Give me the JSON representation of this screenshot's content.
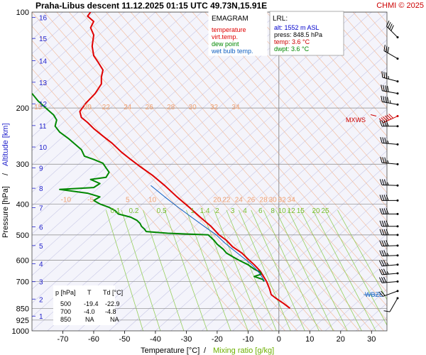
{
  "header": {
    "title": "Praha-Libus   descent   11.12.2025 01:15 UTC  49.73N,15.91E",
    "copyright": "CHMI © 2025"
  },
  "legend": {
    "title": "EMAGRAM",
    "items": [
      {
        "label": "temperature",
        "color": "#e00000"
      },
      {
        "label": "virt.temp.",
        "color": "#e00000"
      },
      {
        "label": "dew point",
        "color": "#008800"
      },
      {
        "label": "wet bulb temp.",
        "color": "#1060c0"
      }
    ]
  },
  "lrl": {
    "title": "LRL:",
    "alt": "alt: 1552 m ASL",
    "press": "press: 848.5 hPa",
    "temp": "temp: 3.6 °C",
    "dwpt": "dwpt: 3.6 °C",
    "colors": {
      "alt": "#0000cc",
      "press": "#000000",
      "temp": "#cc0000",
      "dwpt": "#008800"
    }
  },
  "table": {
    "headers": [
      "p [hPa]",
      "T",
      "Td [°C]"
    ],
    "rows": [
      [
        "500",
        "-19.4",
        "-22.9"
      ],
      [
        "700",
        "-4.0",
        "-4.8"
      ],
      [
        "850",
        "NA",
        "NA"
      ]
    ]
  },
  "axis_titles": {
    "x_left": "Temperature [°C]",
    "x_sep": "/",
    "x_right": "Mixing ratio [g/kg]",
    "y_left": "Pressure [hPa]",
    "y_sep": "/",
    "y_right": "Altitude [km]"
  },
  "markers": {
    "mxws": "MXWS",
    "wbzl": "WBZL"
  },
  "chart_data": {
    "type": "line",
    "xlim": [
      -80,
      35
    ],
    "ylim_hpa": [
      1000,
      100
    ],
    "y_scale": "log",
    "x_ticks": [
      -70,
      -60,
      -50,
      -40,
      -30,
      -20,
      -10,
      0,
      10,
      20,
      30
    ],
    "pressure_ticks": [
      100,
      200,
      300,
      400,
      500,
      600,
      700,
      850,
      925,
      1000
    ],
    "altitude_ticks": [
      {
        "km": "1",
        "p": 899
      },
      {
        "km": "2",
        "p": 795
      },
      {
        "km": "3",
        "p": 701
      },
      {
        "km": "4",
        "p": 616
      },
      {
        "km": "5",
        "p": 540
      },
      {
        "km": "6",
        "p": 472
      },
      {
        "km": "7",
        "p": 411
      },
      {
        "km": "8",
        "p": 357
      },
      {
        "km": "9",
        "p": 308
      },
      {
        "km": "10",
        "p": 265
      },
      {
        "km": "11",
        "p": 227
      },
      {
        "km": "12",
        "p": 194
      },
      {
        "km": "13",
        "p": 166
      },
      {
        "km": "14",
        "p": 142
      },
      {
        "km": "15",
        "p": 121
      },
      {
        "km": "16",
        "p": 104
      }
    ],
    "dry_adiabat_labels_upper": [
      {
        "text": "15",
        "t": -78,
        "p": 198
      },
      {
        "text": "20",
        "t": -62,
        "p": 198
      },
      {
        "text": "22",
        "t": -56,
        "p": 198
      },
      {
        "text": "24",
        "t": -49,
        "p": 198
      },
      {
        "text": "26",
        "t": -42,
        "p": 198
      },
      {
        "text": "28",
        "t": -35,
        "p": 198
      },
      {
        "text": "30",
        "t": -28,
        "p": 198
      },
      {
        "text": "32",
        "t": -21,
        "p": 198
      },
      {
        "text": "34",
        "t": -14,
        "p": 198
      }
    ],
    "dry_adiabat_labels_lower": [
      {
        "text": "-10",
        "t": -69,
        "p": 386
      },
      {
        "text": "-5",
        "t": -61,
        "p": 386
      },
      {
        "text": "5",
        "t": -49,
        "p": 386
      },
      {
        "text": "10",
        "t": -41,
        "p": 386
      },
      {
        "text": "20",
        "t": -20,
        "p": 386
      },
      {
        "text": "22",
        "t": -17,
        "p": 386
      },
      {
        "text": "24",
        "t": -13,
        "p": 386
      },
      {
        "text": "26",
        "t": -9,
        "p": 386
      },
      {
        "text": "28",
        "t": -5,
        "p": 386
      },
      {
        "text": "30",
        "t": -2,
        "p": 386
      },
      {
        "text": "32",
        "t": 1,
        "p": 386
      },
      {
        "text": "34",
        "t": 4,
        "p": 386
      }
    ],
    "mixing_ratio_labels": [
      {
        "text": "0.1",
        "t": -53,
        "p": 418
      },
      {
        "text": "0.2",
        "t": -47,
        "p": 418
      },
      {
        "text": "0.5",
        "t": -38,
        "p": 418
      },
      {
        "text": "1",
        "t": -28,
        "p": 418
      },
      {
        "text": "1.4",
        "t": -24,
        "p": 418
      },
      {
        "text": "2",
        "t": -20,
        "p": 418
      },
      {
        "text": "3",
        "t": -15,
        "p": 418
      },
      {
        "text": "4",
        "t": -11,
        "p": 418
      },
      {
        "text": "6",
        "t": -6,
        "p": 418
      },
      {
        "text": "8",
        "t": -2,
        "p": 418
      },
      {
        "text": "10",
        "t": 1,
        "p": 418
      },
      {
        "text": "12",
        "t": 4,
        "p": 418
      },
      {
        "text": "15",
        "t": 7,
        "p": 418
      },
      {
        "text": "20",
        "t": 12,
        "p": 418
      },
      {
        "text": "25",
        "t": 15,
        "p": 418
      }
    ],
    "series": [
      {
        "name": "temperature",
        "color": "#e00000",
        "points": [
          [
            3.6,
            850
          ],
          [
            1.5,
            820
          ],
          [
            -1,
            790
          ],
          [
            -2.5,
            770
          ],
          [
            -3,
            740
          ],
          [
            -4,
            700
          ],
          [
            -4.8,
            680
          ],
          [
            -5.4,
            665
          ],
          [
            -6,
            650
          ],
          [
            -8,
            620
          ],
          [
            -10,
            595
          ],
          [
            -12,
            570
          ],
          [
            -15,
            545
          ],
          [
            -17,
            520
          ],
          [
            -19.4,
            500
          ],
          [
            -22,
            470
          ],
          [
            -25.5,
            440
          ],
          [
            -29,
            410
          ],
          [
            -33,
            380
          ],
          [
            -37,
            350
          ],
          [
            -41,
            325
          ],
          [
            -45,
            305
          ],
          [
            -48,
            290
          ],
          [
            -51,
            275
          ],
          [
            -54,
            258
          ],
          [
            -57,
            245
          ],
          [
            -60,
            232
          ],
          [
            -62,
            222
          ],
          [
            -64,
            214
          ],
          [
            -64.5,
            205
          ],
          [
            -62.5,
            193
          ],
          [
            -59.5,
            180
          ],
          [
            -57.5,
            168
          ],
          [
            -57.5,
            160
          ],
          [
            -57,
            152
          ],
          [
            -58.5,
            144
          ],
          [
            -60,
            137
          ],
          [
            -60.5,
            128
          ],
          [
            -60,
            118
          ],
          [
            -61,
            112
          ],
          [
            -60,
            107
          ],
          [
            -62,
            103
          ],
          [
            -61,
            100
          ]
        ]
      },
      {
        "name": "dew point",
        "color": "#008800",
        "points": [
          [
            -4.8,
            700
          ],
          [
            -5.2,
            690
          ],
          [
            -8,
            675
          ],
          [
            -7,
            670
          ],
          [
            -5.8,
            665
          ],
          [
            -6,
            655
          ],
          [
            -8,
            640
          ],
          [
            -10,
            620
          ],
          [
            -13,
            600
          ],
          [
            -15,
            585
          ],
          [
            -17,
            570
          ],
          [
            -18,
            555
          ],
          [
            -20,
            535
          ],
          [
            -21,
            520
          ],
          [
            -22.9,
            500
          ],
          [
            -36,
            494
          ],
          [
            -43,
            488
          ],
          [
            -43.5,
            480
          ],
          [
            -44.5,
            470
          ],
          [
            -45,
            460
          ],
          [
            -46,
            450
          ],
          [
            -48,
            440
          ],
          [
            -52,
            430
          ],
          [
            -53,
            420
          ],
          [
            -55,
            410
          ],
          [
            -58,
            400
          ],
          [
            -60,
            390
          ],
          [
            -58,
            380
          ],
          [
            -62,
            370
          ],
          [
            -71,
            360
          ],
          [
            -60,
            355
          ],
          [
            -58,
            345
          ],
          [
            -61,
            335
          ],
          [
            -56,
            330
          ],
          [
            -55,
            318
          ],
          [
            -56,
            308
          ],
          [
            -57,
            298
          ],
          [
            -60,
            290
          ],
          [
            -63,
            283
          ],
          [
            -64,
            270
          ],
          [
            -66,
            260
          ],
          [
            -68,
            250
          ],
          [
            -71,
            238
          ],
          [
            -72.5,
            228
          ],
          [
            -72,
            218
          ],
          [
            -73,
            210
          ],
          [
            -75,
            202
          ],
          [
            -78,
            190
          ],
          [
            -80,
            180
          ]
        ]
      },
      {
        "name": "wet bulb temp.",
        "color": "#1060c0",
        "points": [
          [
            -4.6,
            700
          ],
          [
            -5.6,
            675
          ],
          [
            -6.8,
            650
          ],
          [
            -8.8,
            620
          ],
          [
            -11.5,
            590
          ],
          [
            -14.5,
            560
          ],
          [
            -17.5,
            530
          ],
          [
            -20.3,
            500
          ],
          [
            -24.2,
            470
          ],
          [
            -28.3,
            440
          ],
          [
            -32.6,
            410
          ],
          [
            -37,
            380
          ],
          [
            -41.5,
            350
          ]
        ]
      }
    ],
    "wind_barbs": [
      {
        "p": 120,
        "dir": 315,
        "kt": 40
      },
      {
        "p": 140,
        "dir": 300,
        "kt": 30
      },
      {
        "p": 165,
        "dir": 285,
        "kt": 35
      },
      {
        "p": 180,
        "dir": 280,
        "kt": 40
      },
      {
        "p": 195,
        "dir": 280,
        "kt": 45
      },
      {
        "p": 212,
        "dir": 245,
        "kt": 60
      },
      {
        "p": 228,
        "dir": 270,
        "kt": 40
      },
      {
        "p": 260,
        "dir": 275,
        "kt": 35
      },
      {
        "p": 300,
        "dir": 275,
        "kt": 35
      },
      {
        "p": 350,
        "dir": 272,
        "kt": 35
      },
      {
        "p": 390,
        "dir": 270,
        "kt": 40
      },
      {
        "p": 430,
        "dir": 270,
        "kt": 40
      },
      {
        "p": 470,
        "dir": 270,
        "kt": 40
      },
      {
        "p": 500,
        "dir": 270,
        "kt": 40
      },
      {
        "p": 540,
        "dir": 268,
        "kt": 40
      },
      {
        "p": 580,
        "dir": 268,
        "kt": 35
      },
      {
        "p": 620,
        "dir": 265,
        "kt": 35
      },
      {
        "p": 660,
        "dir": 265,
        "kt": 35
      },
      {
        "p": 700,
        "dir": 265,
        "kt": 30
      },
      {
        "p": 750,
        "dir": 250,
        "kt": 20
      },
      {
        "p": 790,
        "dir": 210,
        "kt": 10
      }
    ]
  }
}
